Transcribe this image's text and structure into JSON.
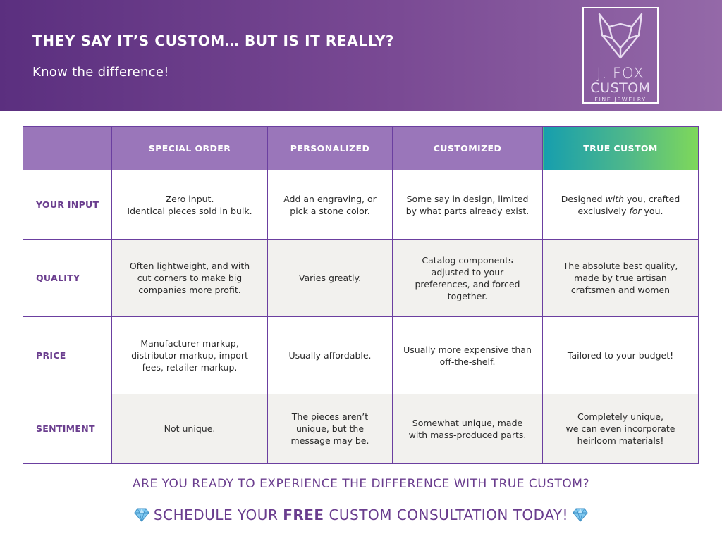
{
  "banner": {
    "title": "THEY SAY IT’S CUSTOM… BUT IS IT REALLY?",
    "subtitle": "Know the difference!"
  },
  "logo": {
    "line1": "J. FOX",
    "line2": "CUSTOM",
    "line3": "FINE JEWELRY"
  },
  "table": {
    "headers": [
      "",
      "SPECIAL ORDER",
      "PERSONALIZED",
      "CUSTOMIZED",
      "TRUE CUSTOM"
    ],
    "rows": [
      {
        "label": "YOUR INPUT",
        "cells": [
          "Zero input.\nIdentical pieces sold in bulk.",
          "Add an engraving, or pick a stone color.",
          "Some say in design, limited by what parts already exist."
        ],
        "true_custom": {
          "part1": "Designed ",
          "em1": "with",
          "part2": " you, crafted exclusively ",
          "em2": "for",
          "part3": " you."
        }
      },
      {
        "label": "QUALITY",
        "cells": [
          "Often lightweight, and with cut corners to make big companies more profit.",
          "Varies greatly.",
          "Catalog components adjusted to your preferences, and forced together.",
          "The absolute best quality, made by true artisan craftsmen and women"
        ]
      },
      {
        "label": "PRICE",
        "cells": [
          "Manufacturer markup, distributor markup, import fees, retailer markup.",
          "Usually affordable.",
          "Usually more expensive than off-the-shelf.",
          "Tailored to your budget!"
        ]
      },
      {
        "label": "SENTIMENT",
        "cells": [
          "Not unique.",
          "The pieces aren’t unique, but the message may be.",
          "Somewhat unique, made with mass-produced parts.",
          "Completely unique,\nwe can even incorporate heirloom materials!"
        ]
      }
    ]
  },
  "cta": {
    "question": "ARE YOU READY TO EXPERIENCE THE DIFFERENCE WITH TRUE CUSTOM?",
    "schedule_before": "SCHEDULE YOUR ",
    "schedule_bold": "FREE",
    "schedule_after": " CUSTOM CONSULTATION TODAY!"
  },
  "icons": {
    "logo": "fox-head-icon",
    "gem": "gem-icon"
  },
  "colors": {
    "brand_purple": "#6a3d8e",
    "header_purple": "#9a76ba",
    "true_custom_gradient_start": "#169eae",
    "true_custom_gradient_end": "#7fd85a"
  }
}
